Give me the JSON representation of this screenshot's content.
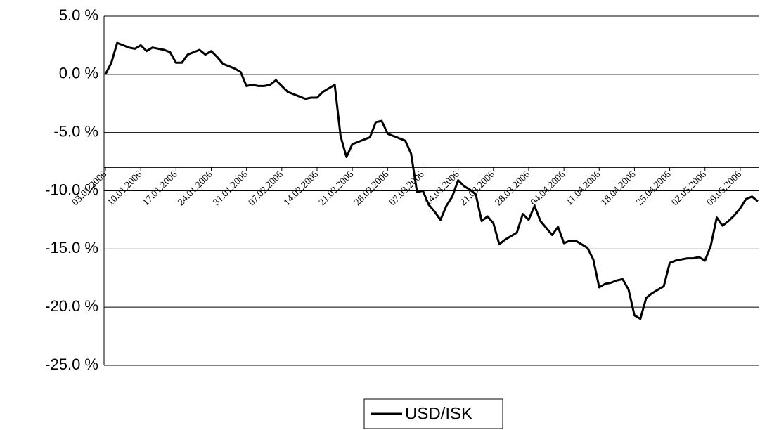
{
  "chart_data": {
    "type": "line",
    "categories": [
      "03.01.2006",
      null,
      null,
      null,
      null,
      null,
      "10.01.2006",
      null,
      null,
      null,
      null,
      null,
      "17.01.2006",
      null,
      null,
      null,
      null,
      null,
      "24.01.2006",
      null,
      null,
      null,
      null,
      null,
      "31.01.2006",
      null,
      null,
      null,
      null,
      null,
      "07.02.2006",
      null,
      null,
      null,
      null,
      null,
      "14.02.2006",
      null,
      null,
      null,
      null,
      null,
      "21.02.2006",
      null,
      null,
      null,
      null,
      null,
      "28.02.2006",
      null,
      null,
      null,
      null,
      null,
      "07.03.2006",
      null,
      null,
      null,
      null,
      null,
      "14.03.2006",
      null,
      null,
      null,
      null,
      null,
      "21.03.2006",
      null,
      null,
      null,
      null,
      null,
      "28.03.2006",
      null,
      null,
      null,
      null,
      null,
      "04.04.2006",
      null,
      null,
      null,
      null,
      null,
      "11.04.2006",
      null,
      null,
      null,
      null,
      null,
      "18.04.2006",
      null,
      null,
      null,
      null,
      null,
      "25.04.2006",
      null,
      null,
      null,
      null,
      null,
      "02.05.2006",
      null,
      null,
      null,
      null,
      null,
      "09.05.2006",
      null,
      null,
      null
    ],
    "series": [
      {
        "name": "USD/ISK",
        "color": "#000000",
        "values": [
          0.0,
          1.0,
          2.7,
          2.5,
          2.3,
          2.2,
          2.5,
          2.0,
          2.3,
          2.2,
          2.1,
          1.9,
          1.0,
          1.0,
          1.7,
          1.9,
          2.1,
          1.7,
          2.0,
          1.5,
          0.9,
          0.7,
          0.5,
          0.2,
          -1.0,
          -0.9,
          -1.0,
          -1.0,
          -0.9,
          -0.5,
          -1.0,
          -1.5,
          -1.7,
          -1.9,
          -2.1,
          -2.0,
          -2.0,
          -1.5,
          -1.2,
          -0.9,
          -5.3,
          -7.1,
          -6.0,
          -5.8,
          -5.6,
          -5.4,
          -4.1,
          -4.0,
          -5.1,
          -5.3,
          -5.5,
          -5.7,
          -6.8,
          -10.1,
          -10.0,
          -11.2,
          -11.8,
          -12.5,
          -11.3,
          -10.5,
          -9.1,
          -9.6,
          -9.9,
          -10.3,
          -12.6,
          -12.2,
          -12.8,
          -14.6,
          -14.2,
          -13.9,
          -13.6,
          -12.0,
          -12.5,
          -11.3,
          -12.6,
          -13.2,
          -13.8,
          -13.1,
          -14.5,
          -14.3,
          -14.3,
          -14.6,
          -14.9,
          -15.9,
          -18.3,
          -18.0,
          -17.9,
          -17.7,
          -17.6,
          -18.5,
          -20.7,
          -21.0,
          -19.2,
          -18.8,
          -18.5,
          -18.2,
          -16.2,
          -16.0,
          -15.9,
          -15.8,
          -15.8,
          -15.7,
          -16.0,
          -14.7,
          -12.3,
          -13.0,
          -12.6,
          -12.1,
          -11.5,
          -10.7,
          -10.5,
          -10.9
        ]
      }
    ],
    "ylim": [
      -25,
      5
    ],
    "yticks": [
      {
        "value": -25,
        "label": "-25.0 %"
      },
      {
        "value": -20,
        "label": "-20.0 %"
      },
      {
        "value": -15,
        "label": "-15.0 %"
      },
      {
        "value": -10,
        "label": "-10.0 %"
      },
      {
        "value": -5,
        "label": "-5.0 %"
      },
      {
        "value": 0,
        "label": "0.0 %"
      },
      {
        "value": 5,
        "label": "5.0 %"
      }
    ],
    "x_axis_crossing": -8,
    "grid": true,
    "legend": "bottom"
  }
}
